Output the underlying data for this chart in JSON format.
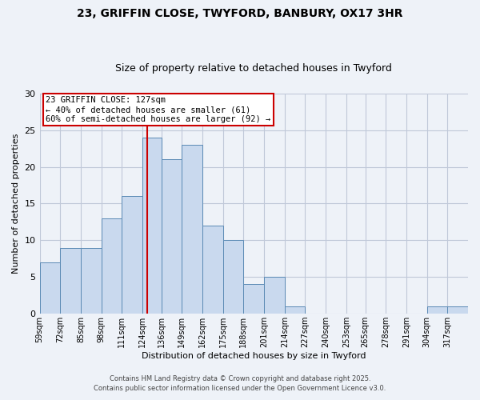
{
  "title1": "23, GRIFFIN CLOSE, TWYFORD, BANBURY, OX17 3HR",
  "title2": "Size of property relative to detached houses in Twyford",
  "xlabel": "Distribution of detached houses by size in Twyford",
  "ylabel": "Number of detached properties",
  "bin_labels": [
    "59sqm",
    "72sqm",
    "85sqm",
    "98sqm",
    "111sqm",
    "124sqm",
    "136sqm",
    "149sqm",
    "162sqm",
    "175sqm",
    "188sqm",
    "201sqm",
    "214sqm",
    "227sqm",
    "240sqm",
    "253sqm",
    "265sqm",
    "278sqm",
    "291sqm",
    "304sqm",
    "317sqm"
  ],
  "bin_edges": [
    59,
    72,
    85,
    98,
    111,
    124,
    136,
    149,
    162,
    175,
    188,
    201,
    214,
    227,
    240,
    253,
    265,
    278,
    291,
    304,
    317,
    330
  ],
  "counts": [
    7,
    9,
    9,
    13,
    16,
    24,
    21,
    23,
    12,
    10,
    4,
    5,
    1,
    0,
    0,
    0,
    0,
    0,
    0,
    1,
    1
  ],
  "bar_color": "#c9d9ee",
  "bar_edge_color": "#5b8ab5",
  "grid_color": "#c0c8d8",
  "bg_color": "#eef2f8",
  "vline_x": 127,
  "vline_color": "#cc0000",
  "annotation_line1": "23 GRIFFIN CLOSE: 127sqm",
  "annotation_line2": "← 40% of detached houses are smaller (61)",
  "annotation_line3": "60% of semi-detached houses are larger (92) →",
  "annotation_box_color": "#ffffff",
  "annotation_box_edge": "#cc0000",
  "footer1": "Contains HM Land Registry data © Crown copyright and database right 2025.",
  "footer2": "Contains public sector information licensed under the Open Government Licence v3.0.",
  "ylim": [
    0,
    30
  ],
  "yticks": [
    0,
    5,
    10,
    15,
    20,
    25,
    30
  ]
}
